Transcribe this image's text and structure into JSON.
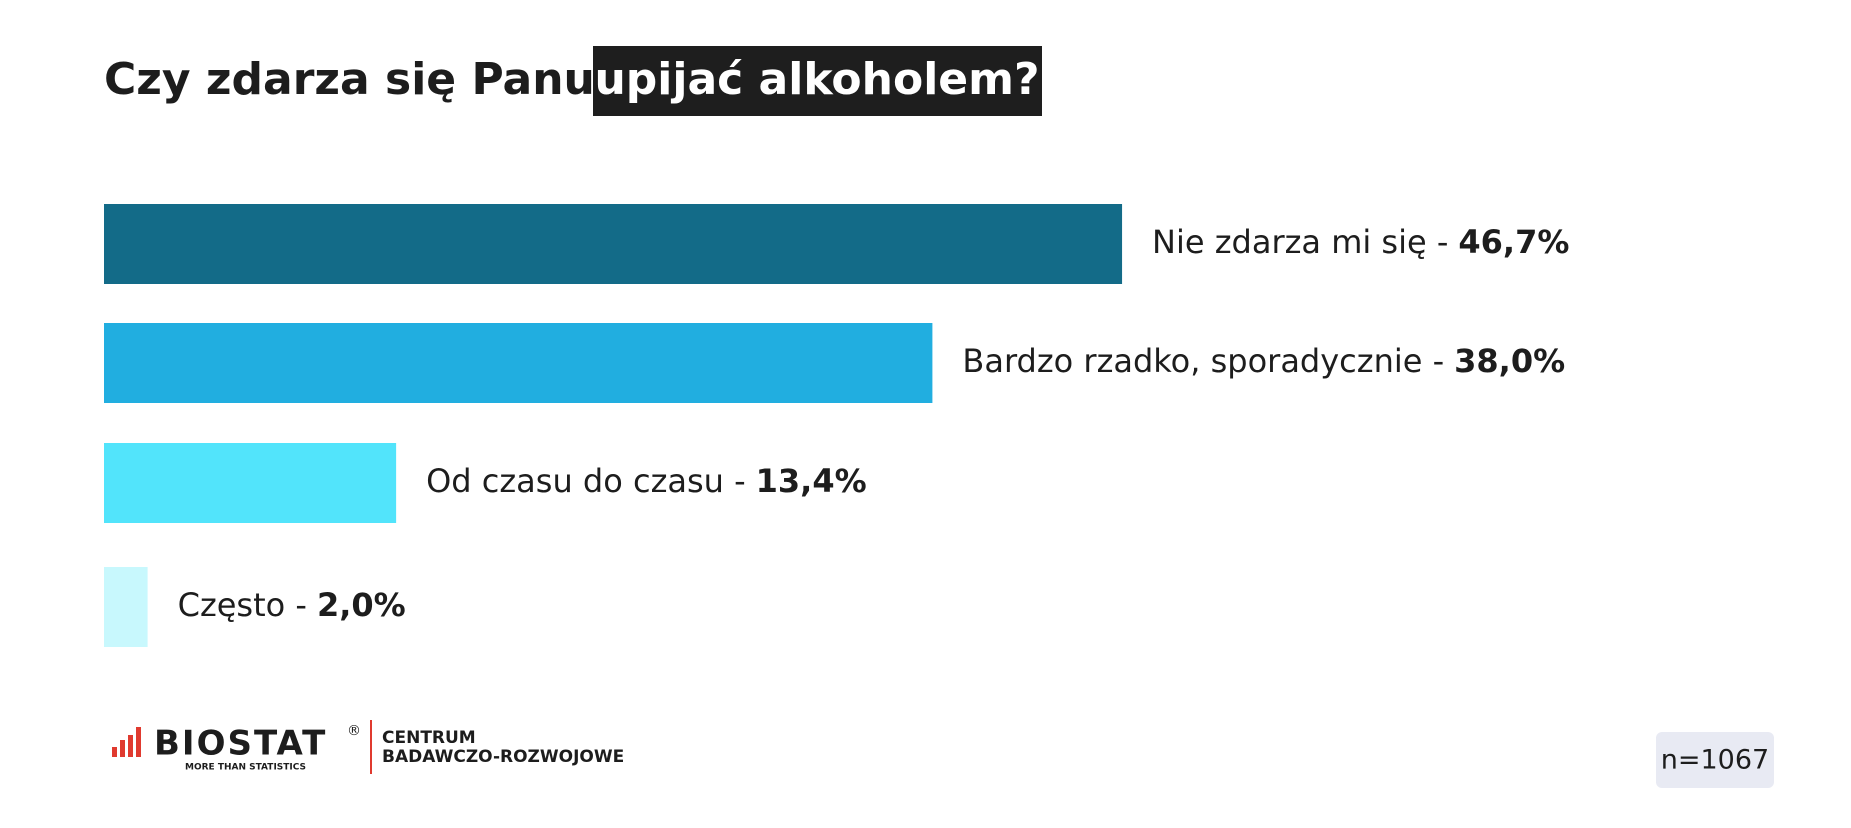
{
  "chart_data": {
    "type": "hbar",
    "title": "Czy zdarza się Panu/i",
    "title_highlight": "upijać alkoholem?",
    "categories": [
      "Nie zdarza mi się -",
      "Bardzo rzadko, sporadycznie -",
      "Od czasu do czasu -",
      "Często -"
    ],
    "values": [
      46.7,
      38.0,
      13.4,
      2.0
    ],
    "value_labels": [
      "46,7%",
      "38,0%",
      "13,4%",
      "2,0%"
    ],
    "colors": [
      "#136b88",
      "#21aee0",
      "#52e4fb",
      "#c8f8fd"
    ],
    "sample_size": "n=1067",
    "logo": {
      "name": "BIOSTAT",
      "mark": "®",
      "tagline": "MORE THAN STATISTICS",
      "unit_line1": "CENTRUM",
      "unit_line2": "BADAWCZO-ROZWOJOWE"
    }
  }
}
